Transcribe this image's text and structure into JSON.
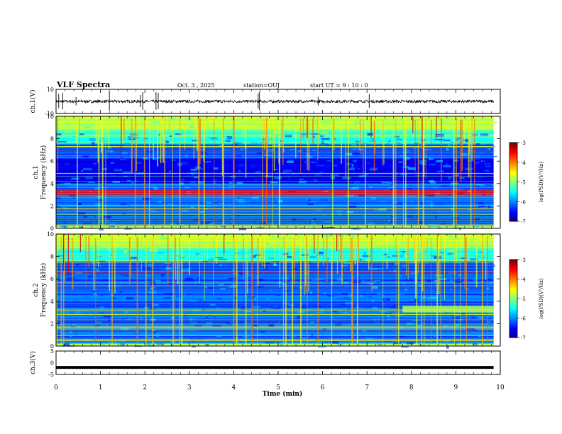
{
  "header": {
    "title": "VLF Spectra",
    "date": "Oct. 3  , 2025",
    "station": "station=OUJ",
    "start_ut": "start  UT =   9  : 10 : 0"
  },
  "chart_data": [
    {
      "type": "line",
      "name": "ch1-waveform",
      "ylabel": "ch.1(V)",
      "ylim": [
        -10,
        10
      ],
      "y_ticks": [
        "10",
        "-10"
      ],
      "baseline": 0,
      "noise_amplitude": 1.2,
      "spike_times_min": [
        0.06,
        0.15,
        0.45,
        1.2,
        1.9,
        1.95,
        2.25,
        2.3,
        4.55,
        4.58,
        5.9,
        7.05
      ]
    },
    {
      "type": "heatmap",
      "name": "ch1-spectrogram",
      "ylabel": "ch.1\nFrequency  (kHz)",
      "xlim": [
        0,
        10
      ],
      "ylim": [
        0,
        10
      ],
      "y_ticks": [
        "0",
        "2",
        "4",
        "6",
        "8",
        "10"
      ],
      "data_extent_min": 9.85,
      "colorbar": {
        "label": "log(PSD)(V²/Hz)",
        "range": [
          -7,
          -3
        ],
        "ticks": [
          "-3",
          "-4",
          "-5",
          "-6",
          "-7"
        ]
      },
      "strong_lines_khz": [
        3.0,
        3.2,
        3.4,
        1.8,
        0.3,
        7.3
      ],
      "dark_band_khz": [
        4.0,
        6.0
      ]
    },
    {
      "type": "heatmap",
      "name": "ch2-spectrogram",
      "ylabel": "ch.2\nFrequency  (kHz)",
      "xlim": [
        0,
        10
      ],
      "ylim": [
        0,
        10
      ],
      "y_ticks": [
        "0",
        "2",
        "4",
        "6",
        "8",
        "10"
      ],
      "data_extent_min": 9.85,
      "colorbar": {
        "label": "log(PSD)(V²/Hz)",
        "range": [
          -7,
          -3
        ],
        "ticks": [
          "-3",
          "-4",
          "-5",
          "-6",
          "-7"
        ]
      },
      "strong_lines_khz": [
        6.6,
        2.8,
        2.2,
        1.7,
        0.5
      ],
      "band_event": {
        "start_min": 7.8,
        "end_min": 9.85,
        "low_khz": 3.0,
        "high_khz": 3.6
      }
    },
    {
      "type": "line",
      "name": "ch3-waveform",
      "ylabel": "ch.3(V)",
      "ylim": [
        -5,
        5
      ],
      "y_ticks": [
        "5",
        "0",
        "-5"
      ],
      "constant_value": -2
    }
  ],
  "xaxis": {
    "label": "Time  (min)",
    "range": [
      0,
      10
    ],
    "ticks": [
      "0",
      "1",
      "2",
      "3",
      "4",
      "5",
      "6",
      "7",
      "8",
      "9",
      "10"
    ]
  }
}
